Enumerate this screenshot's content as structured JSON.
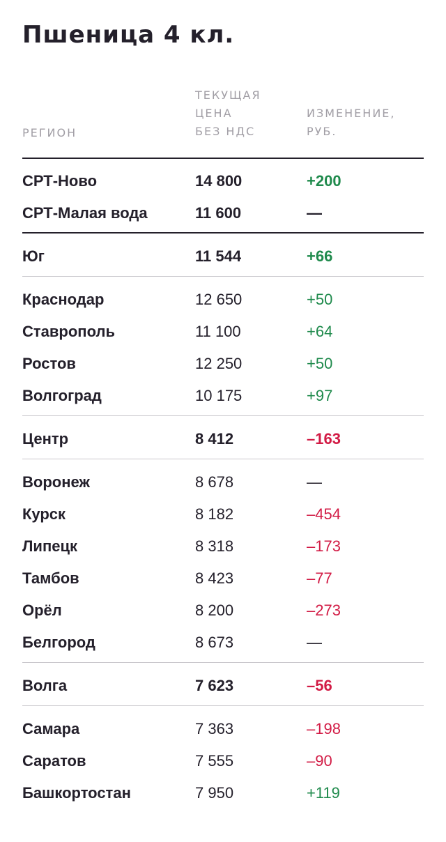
{
  "title": "Пшеница 4 кл.",
  "headers": {
    "region": "РЕГИОН",
    "price": [
      "ТЕКУЩАЯ",
      "ЦЕНА",
      "БЕЗ НДС"
    ],
    "change": [
      "ИЗМЕНЕНИЕ,",
      "РУБ."
    ]
  },
  "colors": {
    "positive": "#1f8a4c",
    "negative": "#d21b45",
    "neutral": "#24202b",
    "text": "#24202b",
    "header": "#a19ea5"
  },
  "rows": [
    {
      "region": "СРТ-Ново",
      "price": "14 800",
      "change": "+200",
      "trend": "pos",
      "bold": true
    },
    {
      "region": "СРТ-Малая вода",
      "price": "11 600",
      "change": "—",
      "trend": "neu",
      "bold": true
    },
    {
      "region": "Юг",
      "price": "11 544",
      "change": "+66",
      "trend": "pos",
      "bold": true
    },
    {
      "region": "Краснодар",
      "price": "12 650",
      "change": "+50",
      "trend": "pos",
      "bold": false
    },
    {
      "region": "Ставрополь",
      "price": "11 100",
      "change": "+64",
      "trend": "pos",
      "bold": false
    },
    {
      "region": "Ростов",
      "price": "12 250",
      "change": "+50",
      "trend": "pos",
      "bold": false
    },
    {
      "region": "Волгоград",
      "price": "10 175",
      "change": "+97",
      "trend": "pos",
      "bold": false
    },
    {
      "region": "Центр",
      "price": "8 412",
      "change": "–163",
      "trend": "neg",
      "bold": true
    },
    {
      "region": "Воронеж",
      "price": "8 678",
      "change": "—",
      "trend": "neu",
      "bold": false
    },
    {
      "region": "Курск",
      "price": "8 182",
      "change": "–454",
      "trend": "neg",
      "bold": false
    },
    {
      "region": "Липецк",
      "price": "8 318",
      "change": "–173",
      "trend": "neg",
      "bold": false
    },
    {
      "region": "Тамбов",
      "price": "8 423",
      "change": "–77",
      "trend": "neg",
      "bold": false
    },
    {
      "region": "Орёл",
      "price": "8 200",
      "change": "–273",
      "trend": "neg",
      "bold": false
    },
    {
      "region": "Белгород",
      "price": "8 673",
      "change": "—",
      "trend": "neu",
      "bold": false
    },
    {
      "region": "Волга",
      "price": "7 623",
      "change": "–56",
      "trend": "neg",
      "bold": true
    },
    {
      "region": "Самара",
      "price": "7 363",
      "change": "–198",
      "trend": "neg",
      "bold": false
    },
    {
      "region": "Саратов",
      "price": "7 555",
      "change": "–90",
      "trend": "neg",
      "bold": false
    },
    {
      "region": "Башкортостан",
      "price": "7 950",
      "change": "+119",
      "trend": "pos",
      "bold": false
    }
  ]
}
